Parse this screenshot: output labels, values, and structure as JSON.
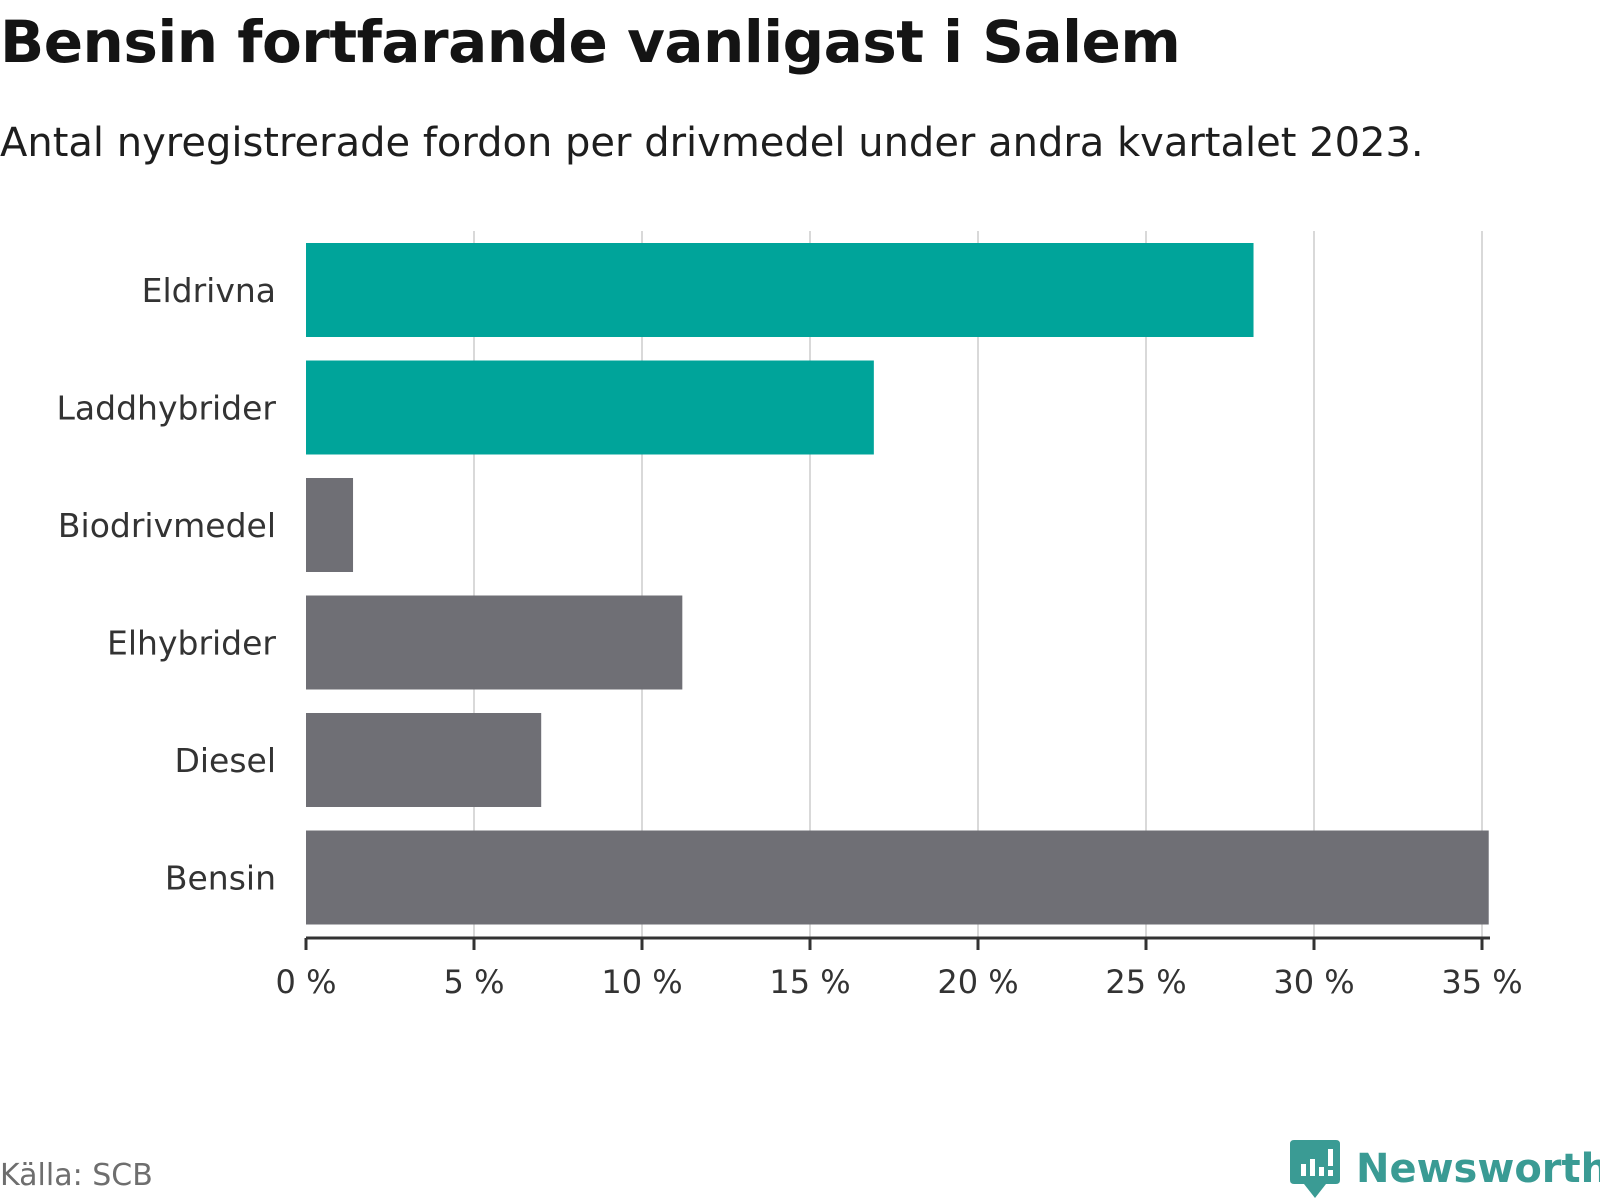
{
  "title": "Bensin fortfarande vanligast i Salem",
  "subtitle": "Antal nyregistrerade fordon per drivmedel under andra kvartalet 2023.",
  "source": "Källa: SCB",
  "brand": {
    "name": "Newsworthy",
    "color": "#3a9b94"
  },
  "colors": {
    "highlight": "#00a49a",
    "default": "#6f6f75",
    "grid": "#d9d9d9",
    "axis": "#333333"
  },
  "chart_data": {
    "type": "bar",
    "orientation": "horizontal",
    "title": "Bensin fortfarande vanligast i Salem",
    "subtitle": "Antal nyregistrerade fordon per drivmedel under andra kvartalet 2023.",
    "categories": [
      "Eldrivna",
      "Laddhybrider",
      "Biodrivmedel",
      "Elhybrider",
      "Diesel",
      "Bensin"
    ],
    "values": [
      28.2,
      16.9,
      1.4,
      11.2,
      7.0,
      35.2
    ],
    "highlighted": [
      true,
      true,
      false,
      false,
      false,
      false
    ],
    "xlim": [
      0,
      35
    ],
    "xticks": [
      0,
      5,
      10,
      15,
      20,
      25,
      30,
      35
    ],
    "xtick_labels": [
      "0 %",
      "5 %",
      "10 %",
      "15 %",
      "20 %",
      "25 %",
      "30 %",
      "35 %"
    ],
    "xlabel": "",
    "ylabel": "",
    "grid": true
  }
}
